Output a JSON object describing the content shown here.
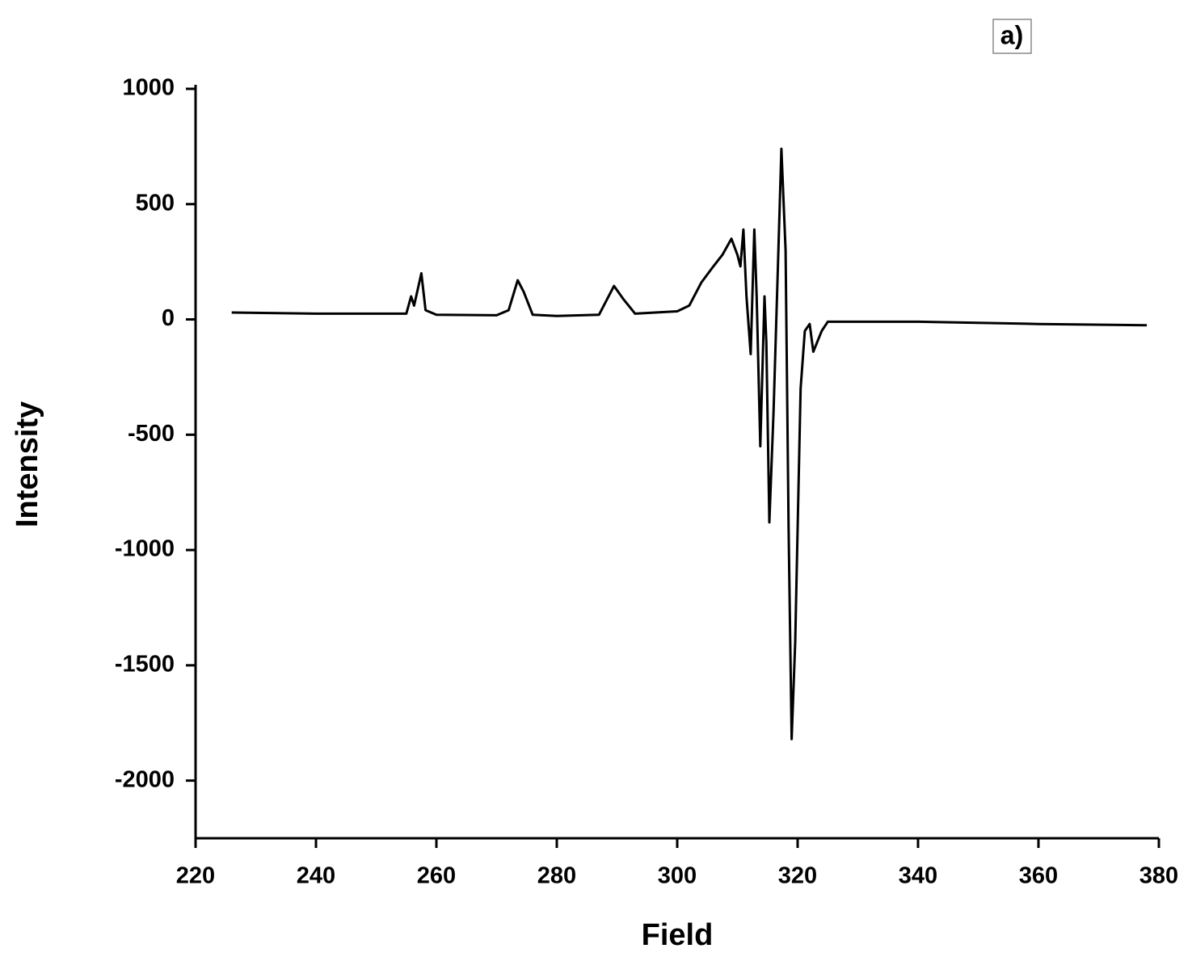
{
  "chart_data": {
    "type": "line",
    "x_label": "Field",
    "y_label": "Intensity",
    "annotation": "a)",
    "x": [
      226,
      240,
      255,
      255.8,
      256.3,
      257.5,
      258.2,
      260,
      270,
      272,
      273.5,
      274.5,
      276,
      280,
      287,
      289.5,
      291,
      293,
      300,
      302,
      304,
      306,
      307.5,
      309,
      310,
      310.5,
      311,
      311.5,
      312.2,
      312.8,
      313.2,
      313.8,
      314.5,
      314.8,
      315.3,
      316,
      316.8,
      317.3,
      318,
      318.5,
      319,
      319.6,
      320.5,
      321.2,
      322,
      322.6,
      324,
      325,
      340,
      360,
      378
    ],
    "series": [
      {
        "name": "Intensity",
        "color": "#000000",
        "values": [
          30,
          25,
          25,
          100,
          60,
          200,
          40,
          20,
          18,
          40,
          170,
          120,
          20,
          15,
          20,
          145,
          90,
          25,
          35,
          60,
          160,
          230,
          280,
          350,
          280,
          230,
          390,
          100,
          -150,
          390,
          100,
          -550,
          100,
          -100,
          -880,
          -400,
          300,
          740,
          300,
          -900,
          -1820,
          -1400,
          -300,
          -50,
          -20,
          -140,
          -50,
          -10,
          -10,
          -20,
          -25
        ]
      }
    ],
    "xlim": [
      220,
      380
    ],
    "xticks": [
      220,
      240,
      260,
      280,
      300,
      320,
      340,
      360,
      380
    ],
    "ylim": [
      -2250,
      1000
    ],
    "yticks": [
      1000,
      500,
      0,
      -500,
      -1000,
      -1500,
      -2000
    ],
    "grid": false
  }
}
